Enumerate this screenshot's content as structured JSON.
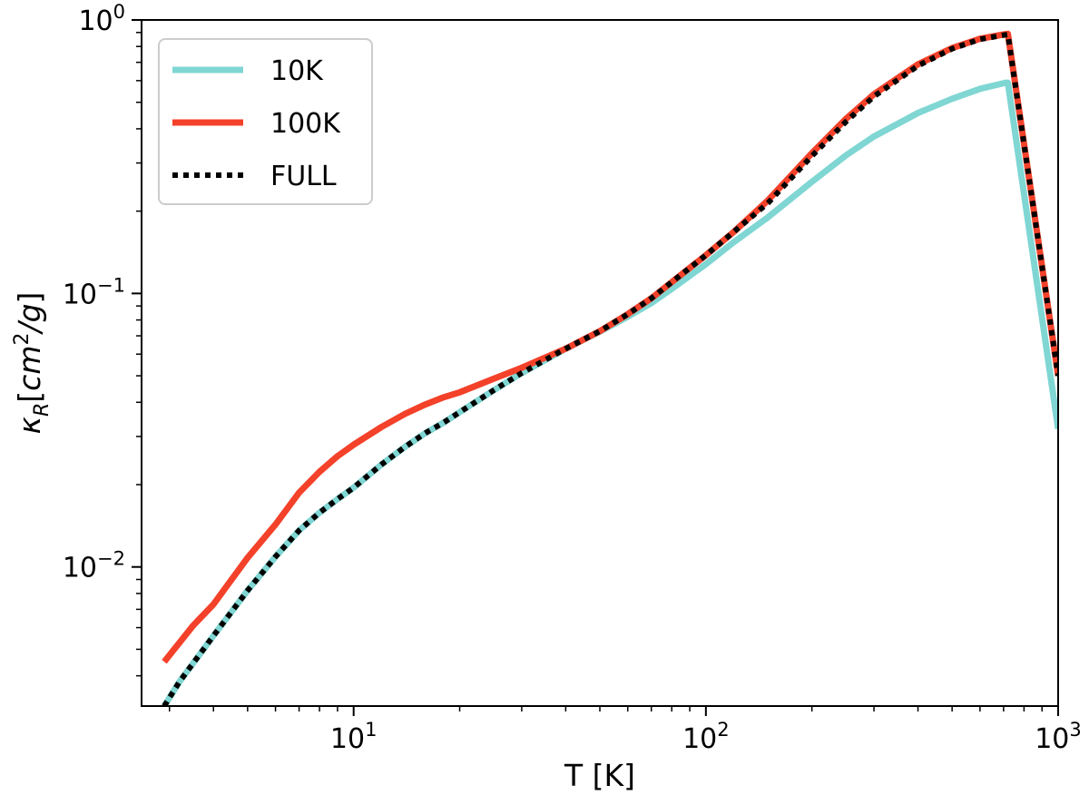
{
  "chart_data": {
    "type": "line",
    "title": "",
    "xlabel": "T [K]",
    "ylabel_main": "κ",
    "ylabel_sub": "R",
    "ylabel_bracket_open": "[",
    "ylabel_unit": "cm",
    "ylabel_sup": "2",
    "ylabel_slash": "/",
    "ylabel_unit2": "g",
    "ylabel_bracket_close": "]",
    "xscale": "log",
    "yscale": "log",
    "xlim": [
      2.5,
      1000
    ],
    "ylim": [
      0.0031,
      1.0
    ],
    "grid": false,
    "legend_position": "top-left",
    "x_ticks": [
      {
        "value": 10,
        "base": "10",
        "exp": "1"
      },
      {
        "value": 100,
        "base": "10",
        "exp": "2"
      },
      {
        "value": 1000,
        "base": "10",
        "exp": "3"
      }
    ],
    "y_ticks": [
      {
        "value": 0.01,
        "base": "10",
        "exp": "−2"
      },
      {
        "value": 0.1,
        "base": "10",
        "exp": "−1"
      },
      {
        "value": 1,
        "base": "10",
        "exp": "0"
      }
    ],
    "series": [
      {
        "name": "10K",
        "color": "#7fd6d3",
        "style": "solid",
        "points": [
          [
            2.9,
            0.0031
          ],
          [
            3.2,
            0.0038
          ],
          [
            4,
            0.0056
          ],
          [
            5,
            0.0082
          ],
          [
            6,
            0.0109
          ],
          [
            7,
            0.0136
          ],
          [
            8,
            0.0158
          ],
          [
            9,
            0.0177
          ],
          [
            10,
            0.0195
          ],
          [
            12,
            0.0237
          ],
          [
            14,
            0.0275
          ],
          [
            16,
            0.0309
          ],
          [
            18,
            0.0337
          ],
          [
            20,
            0.0368
          ],
          [
            25,
            0.0443
          ],
          [
            30,
            0.0512
          ],
          [
            40,
            0.0628
          ],
          [
            50,
            0.0725
          ],
          [
            60,
            0.0822
          ],
          [
            70,
            0.0922
          ],
          [
            80,
            0.104
          ],
          [
            100,
            0.128
          ],
          [
            120,
            0.154
          ],
          [
            150,
            0.19
          ],
          [
            200,
            0.256
          ],
          [
            250,
            0.32
          ],
          [
            300,
            0.375
          ],
          [
            400,
            0.457
          ],
          [
            500,
            0.515
          ],
          [
            600,
            0.56
          ],
          [
            710,
            0.59
          ],
          [
            720,
            0.59
          ],
          [
            1000,
            0.032
          ]
        ]
      },
      {
        "name": "100K",
        "color": "#f4412a",
        "style": "solid",
        "points": [
          [
            2.9,
            0.0045
          ],
          [
            3.5,
            0.0061
          ],
          [
            4,
            0.0073
          ],
          [
            5,
            0.0108
          ],
          [
            6,
            0.0143
          ],
          [
            7,
            0.0187
          ],
          [
            8,
            0.0223
          ],
          [
            9,
            0.0254
          ],
          [
            10,
            0.028
          ],
          [
            12,
            0.0325
          ],
          [
            14,
            0.0363
          ],
          [
            16,
            0.0393
          ],
          [
            18,
            0.0417
          ],
          [
            20,
            0.0435
          ],
          [
            25,
            0.0488
          ],
          [
            30,
            0.0535
          ],
          [
            40,
            0.0628
          ],
          [
            50,
            0.0728
          ],
          [
            60,
            0.084
          ],
          [
            70,
            0.096
          ],
          [
            80,
            0.11
          ],
          [
            100,
            0.138
          ],
          [
            120,
            0.168
          ],
          [
            150,
            0.219
          ],
          [
            200,
            0.326
          ],
          [
            250,
            0.435
          ],
          [
            300,
            0.535
          ],
          [
            400,
            0.688
          ],
          [
            500,
            0.79
          ],
          [
            600,
            0.854
          ],
          [
            700,
            0.885
          ],
          [
            720,
            0.89
          ],
          [
            1000,
            0.05
          ]
        ]
      },
      {
        "name": "FULL",
        "color": "#000000",
        "style": "dotted",
        "points": [
          [
            2.9,
            0.0031
          ],
          [
            3.2,
            0.0038
          ],
          [
            4,
            0.0056
          ],
          [
            5,
            0.0082
          ],
          [
            6,
            0.0109
          ],
          [
            7,
            0.0136
          ],
          [
            8,
            0.0158
          ],
          [
            9,
            0.0177
          ],
          [
            10,
            0.0195
          ],
          [
            12,
            0.0237
          ],
          [
            14,
            0.0275
          ],
          [
            16,
            0.0309
          ],
          [
            18,
            0.0337
          ],
          [
            20,
            0.0368
          ],
          [
            25,
            0.0443
          ],
          [
            30,
            0.0512
          ],
          [
            40,
            0.0628
          ],
          [
            50,
            0.0728
          ],
          [
            60,
            0.084
          ],
          [
            70,
            0.096
          ],
          [
            80,
            0.11
          ],
          [
            100,
            0.138
          ],
          [
            120,
            0.168
          ],
          [
            150,
            0.214
          ],
          [
            200,
            0.318
          ],
          [
            250,
            0.425
          ],
          [
            300,
            0.525
          ],
          [
            400,
            0.68
          ],
          [
            500,
            0.785
          ],
          [
            600,
            0.85
          ],
          [
            700,
            0.88
          ],
          [
            720,
            0.885
          ],
          [
            1000,
            0.05
          ]
        ]
      }
    ]
  }
}
